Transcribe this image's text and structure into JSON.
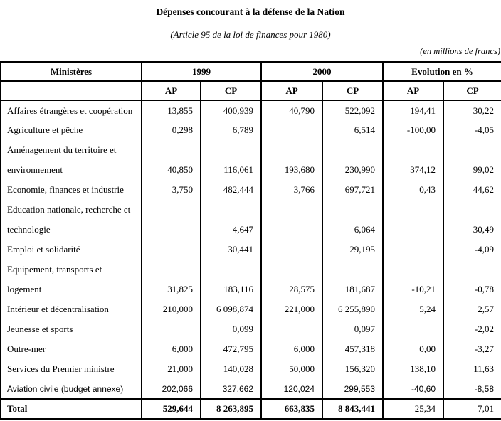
{
  "header": {
    "title": "Dépenses concourant à la défense de la Nation",
    "subtitle": "(Article 95 de la loi de finances pour 1980)",
    "unit_note": "(en millions de francs)"
  },
  "table": {
    "ministries_header": "Ministères",
    "group_headers": [
      "1999",
      "2000",
      "Evolution en %"
    ],
    "sub_headers": [
      "AP",
      "CP",
      "AP",
      "CP",
      "AP",
      "CP"
    ],
    "rows": [
      {
        "label": "Affaires étrangères et coopération",
        "values": [
          "13,855",
          "400,939",
          "40,790",
          "522,092",
          "194,41",
          "30,22"
        ],
        "sans": false
      },
      {
        "label": "Agriculture et pêche",
        "values": [
          "0,298",
          "6,789",
          "",
          "6,514",
          "-100,00",
          "-4,05"
        ],
        "sans": false
      },
      {
        "label": "Aménagement du territoire et",
        "values": [
          "",
          "",
          "",
          "",
          "",
          ""
        ],
        "sans": false
      },
      {
        "label": "environnement",
        "values": [
          "40,850",
          "116,061",
          "193,680",
          "230,990",
          "374,12",
          "99,02"
        ],
        "sans": false
      },
      {
        "label": "Economie, finances et industrie",
        "values": [
          "3,750",
          "482,444",
          "3,766",
          "697,721",
          "0,43",
          "44,62"
        ],
        "sans": false
      },
      {
        "label": "Education nationale, recherche et",
        "values": [
          "",
          "",
          "",
          "",
          "",
          ""
        ],
        "sans": false
      },
      {
        "label": "technologie",
        "values": [
          "",
          "4,647",
          "",
          "6,064",
          "",
          "30,49"
        ],
        "sans": false
      },
      {
        "label": "Emploi et solidarité",
        "values": [
          "",
          "30,441",
          "",
          "29,195",
          "",
          "-4,09"
        ],
        "sans": false
      },
      {
        "label": "Equipement, transports et",
        "values": [
          "",
          "",
          "",
          "",
          "",
          ""
        ],
        "sans": false
      },
      {
        "label": "logement",
        "values": [
          "31,825",
          "183,116",
          "28,575",
          "181,687",
          "-10,21",
          "-0,78"
        ],
        "sans": false
      },
      {
        "label": "Intérieur et décentralisation",
        "values": [
          "210,000",
          "6 098,874",
          "221,000",
          "6 255,890",
          "5,24",
          "2,57"
        ],
        "sans": false
      },
      {
        "label": "Jeunesse et sports",
        "values": [
          "",
          "0,099",
          "",
          "0,097",
          "",
          "-2,02"
        ],
        "sans": false
      },
      {
        "label": "Outre-mer",
        "values": [
          "6,000",
          "472,795",
          "6,000",
          "457,318",
          "0,00",
          "-3,27"
        ],
        "sans": false
      },
      {
        "label": "Services du Premier ministre",
        "values": [
          "21,000",
          "140,028",
          "50,000",
          "156,320",
          "138,10",
          "11,63"
        ],
        "sans": false
      },
      {
        "label": "Aviation civile (budget annexe)",
        "values": [
          "202,066",
          "327,662",
          "120,024",
          "299,553",
          "-40,60",
          "-8,58"
        ],
        "sans": true
      }
    ],
    "total_row": {
      "label": "Total",
      "values": [
        "529,644",
        "8 263,895",
        "663,835",
        "8 843,441",
        "25,34",
        "7,01"
      ],
      "bold_value_count": 4
    }
  }
}
